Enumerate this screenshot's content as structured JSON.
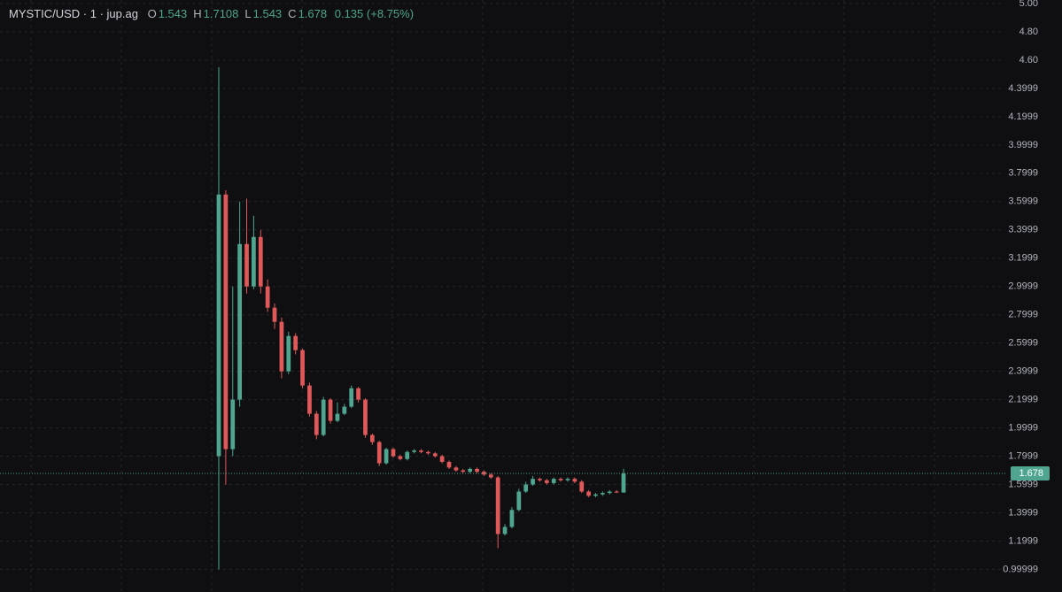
{
  "chart_data": {
    "type": "candlestick",
    "title": "MYSTIC/USD · 1 · jup.ag",
    "legend": [
      {
        "label": "O",
        "value": 1.543
      },
      {
        "label": "H",
        "value": 1.7108
      },
      {
        "label": "L",
        "value": 1.543
      },
      {
        "label": "C",
        "value": 1.678
      }
    ],
    "change": 0.135,
    "change_percent": {
      "value": 8.75,
      "label": "(+8.75%)"
    },
    "last_price": 1.678,
    "up_color": "#4fa58f",
    "down_color": "#e0595a",
    "ylim": [
      0.84,
      5.025
    ],
    "yticks": [
      {
        "value": 5,
        "label": "5.00"
      },
      {
        "value": 4.8,
        "label": "4.80"
      },
      {
        "value": 4.6,
        "label": "4.60"
      },
      4.3999,
      4.1999,
      3.9999,
      3.7999,
      3.5999,
      3.3999,
      3.1999,
      2.9999,
      2.7999,
      2.5999,
      2.3999,
      2.1999,
      1.9999,
      1.7999,
      1.5999,
      1.3999,
      1.1999,
      0.99999
    ],
    "grid": true,
    "open": [
      1.8,
      3.65,
      1.85,
      2.2,
      3.3,
      3.0,
      3.35,
      3.0,
      2.85,
      2.75,
      2.4,
      2.65,
      2.55,
      2.3,
      2.1,
      1.95,
      2.2,
      2.05,
      2.1,
      2.15,
      2.28,
      2.2,
      1.95,
      1.9,
      1.75,
      1.85,
      1.8,
      1.78,
      1.83,
      1.84,
      1.83,
      1.82,
      1.8,
      1.76,
      1.72,
      1.7,
      1.69,
      1.71,
      1.69,
      1.67,
      1.65,
      1.25,
      1.3,
      1.42,
      1.55,
      1.6,
      1.64,
      1.63,
      1.61,
      1.64,
      1.63,
      1.64,
      1.62,
      1.55,
      1.52,
      1.53,
      1.54,
      1.55,
      1.543
    ],
    "high": [
      4.55,
      3.68,
      3.0,
      3.6,
      3.62,
      3.5,
      3.4,
      3.05,
      2.88,
      2.78,
      2.68,
      2.67,
      2.56,
      2.32,
      2.12,
      2.22,
      2.21,
      2.18,
      2.17,
      2.3,
      2.29,
      2.21,
      1.96,
      1.91,
      1.86,
      1.86,
      1.81,
      1.84,
      1.85,
      1.85,
      1.84,
      1.83,
      1.81,
      1.77,
      1.73,
      1.71,
      1.72,
      1.72,
      1.7,
      1.68,
      1.66,
      1.32,
      1.44,
      1.57,
      1.62,
      1.66,
      1.65,
      1.64,
      1.65,
      1.65,
      1.65,
      1.65,
      1.63,
      1.56,
      1.54,
      1.55,
      1.56,
      1.56,
      1.7108
    ],
    "low": [
      1.0,
      1.6,
      1.8,
      2.15,
      2.95,
      2.98,
      2.95,
      2.82,
      2.7,
      2.35,
      2.38,
      2.52,
      2.28,
      2.08,
      1.92,
      1.94,
      2.03,
      2.04,
      2.09,
      2.14,
      2.18,
      1.93,
      1.88,
      1.73,
      1.74,
      1.79,
      1.77,
      1.77,
      1.82,
      1.82,
      1.81,
      1.79,
      1.75,
      1.71,
      1.69,
      1.68,
      1.68,
      1.68,
      1.66,
      1.64,
      1.15,
      1.24,
      1.29,
      1.41,
      1.54,
      1.59,
      1.62,
      1.6,
      1.6,
      1.62,
      1.62,
      1.61,
      1.54,
      1.51,
      1.51,
      1.52,
      1.53,
      1.54,
      1.543
    ],
    "close": [
      3.65,
      1.85,
      2.2,
      3.3,
      3.0,
      3.35,
      3.0,
      2.85,
      2.75,
      2.4,
      2.65,
      2.55,
      2.3,
      2.1,
      1.95,
      2.2,
      2.05,
      2.1,
      2.15,
      2.28,
      2.2,
      1.95,
      1.9,
      1.75,
      1.85,
      1.8,
      1.78,
      1.83,
      1.84,
      1.83,
      1.82,
      1.8,
      1.76,
      1.72,
      1.7,
      1.69,
      1.71,
      1.69,
      1.67,
      1.65,
      1.25,
      1.3,
      1.42,
      1.55,
      1.6,
      1.64,
      1.63,
      1.61,
      1.64,
      1.63,
      1.64,
      1.62,
      1.55,
      1.52,
      1.53,
      1.54,
      1.55,
      1.543,
      1.678
    ]
  }
}
